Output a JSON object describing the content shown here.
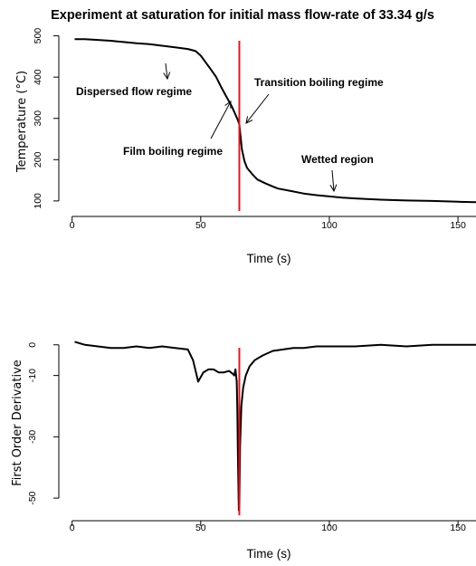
{
  "title": "Experiment at saturation for initial mass flow-rate of 33.34 g/s",
  "colors": {
    "series": "#000000",
    "marker_line": "#e8141c",
    "axis": "#000000"
  },
  "chart_data": [
    {
      "type": "line",
      "xlabel": "Time (s)",
      "ylabel": "Temperature (°C)",
      "xlim": [
        -2,
        157
      ],
      "ylim": [
        80,
        510
      ],
      "xticks": [
        0,
        50,
        100,
        150
      ],
      "yticks": [
        100,
        200,
        300,
        400,
        500
      ],
      "grid": false,
      "legend": "none",
      "vline_x": 65,
      "series": [
        {
          "x": [
            1,
            5,
            10,
            15,
            20,
            25,
            30,
            35,
            40,
            45,
            48,
            50,
            52,
            54,
            56,
            58,
            60,
            62,
            63,
            64,
            64.5,
            65,
            65.5,
            66,
            67,
            68,
            70,
            72,
            75,
            78,
            80,
            85,
            90,
            95,
            100,
            105,
            110,
            120,
            130,
            140,
            150,
            157
          ],
          "y": [
            492,
            492,
            490,
            488,
            485,
            482,
            480,
            476,
            472,
            468,
            463,
            452,
            435,
            418,
            400,
            375,
            352,
            330,
            316,
            302,
            295,
            285,
            255,
            225,
            196,
            180,
            165,
            152,
            143,
            135,
            130,
            124,
            118,
            114,
            111,
            108,
            106,
            103,
            101,
            100,
            98,
            97
          ]
        }
      ],
      "annotations": [
        {
          "text": "Dispersed flow regime",
          "x": 34,
          "y": 473
        },
        {
          "text": "Film boiling regime",
          "x": 58,
          "y": 352
        },
        {
          "text": "Transition boiling regime",
          "x": 66,
          "y": 300
        },
        {
          "text": "Wetted region",
          "x": 100,
          "y": 111
        }
      ]
    },
    {
      "type": "line",
      "xlabel": "Time (s)",
      "ylabel": "First Order Derivative",
      "xlim": [
        -2,
        157
      ],
      "ylim": [
        -55,
        2
      ],
      "xticks": [
        0,
        50,
        100,
        150
      ],
      "yticks": [
        0,
        -10,
        -30,
        -50
      ],
      "grid": false,
      "legend": "none",
      "vline_x": 65,
      "series": [
        {
          "x": [
            1,
            5,
            10,
            15,
            20,
            25,
            30,
            35,
            40,
            45,
            47,
            49,
            51,
            53,
            55,
            57,
            59,
            61,
            62.5,
            63,
            63.5,
            64,
            64.2,
            64.5,
            64.8,
            65,
            65.3,
            65.8,
            66.5,
            67.5,
            69,
            71,
            74,
            78,
            82,
            86,
            90,
            95,
            100,
            110,
            120,
            130,
            140,
            150,
            157
          ],
          "y": [
            1,
            0,
            -0.5,
            -1,
            -1,
            -0.5,
            -1,
            -0.5,
            -1,
            -1.5,
            -5,
            -12,
            -9,
            -8,
            -8,
            -9,
            -9,
            -8.5,
            -9.5,
            -10,
            -8,
            -12,
            -20,
            -38,
            -54,
            -53,
            -33,
            -20,
            -14,
            -10,
            -7,
            -5,
            -3.5,
            -2,
            -1.5,
            -1,
            -1,
            -0.5,
            -0.5,
            -0.5,
            0,
            -0.5,
            0,
            0,
            0
          ]
        }
      ]
    }
  ]
}
